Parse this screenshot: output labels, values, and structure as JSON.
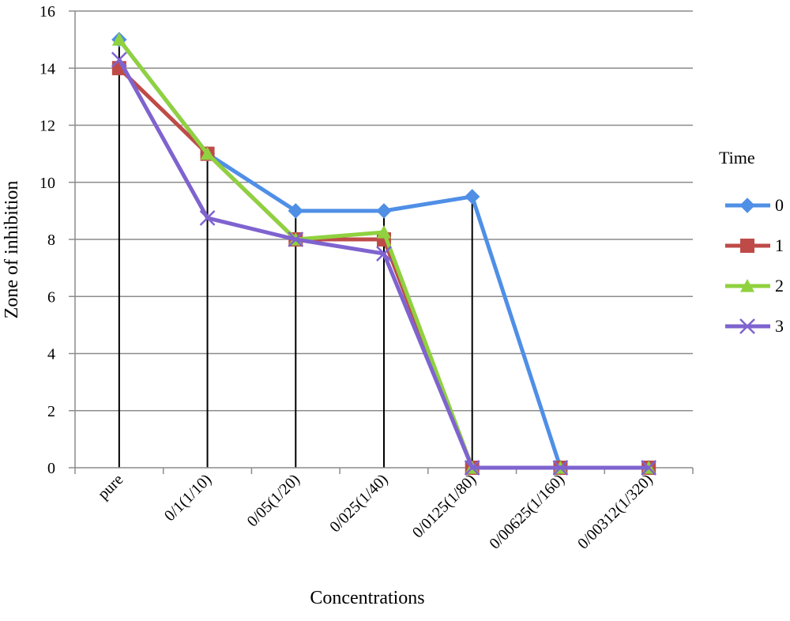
{
  "chart_data": {
    "type": "line",
    "title": "",
    "xlabel": "Concentrations",
    "ylabel": "Zone of inhibition",
    "ylim": [
      0,
      16
    ],
    "yticks": [
      0,
      2,
      4,
      6,
      8,
      10,
      12,
      14,
      16
    ],
    "grid": "horizontal",
    "legend": {
      "title": "Time",
      "placement": "right"
    },
    "categories": [
      "pure",
      "0/1(1/10)",
      "0/05(1/20)",
      "0/025(1/40)",
      "0/0125(1/80)",
      "0/00625(1/160)",
      "0/00312(1/320)"
    ],
    "series": [
      {
        "name": "0",
        "color": "#4F8FE6",
        "marker": "diamond",
        "values": [
          15,
          11,
          9,
          9,
          9.5,
          0,
          0
        ]
      },
      {
        "name": "1",
        "color": "#BE4B48",
        "marker": "square",
        "values": [
          14,
          11,
          8,
          8,
          0,
          0,
          0
        ]
      },
      {
        "name": "2",
        "color": "#8FD13F",
        "marker": "triangle",
        "values": [
          15,
          11,
          8,
          8.25,
          0,
          0,
          0
        ]
      },
      {
        "name": "3",
        "color": "#7F63CF",
        "marker": "x",
        "values": [
          14.3,
          8.75,
          8,
          7.5,
          0,
          0,
          0
        ]
      }
    ],
    "drop_lines": [
      15,
      11,
      9,
      9,
      9.5
    ]
  }
}
